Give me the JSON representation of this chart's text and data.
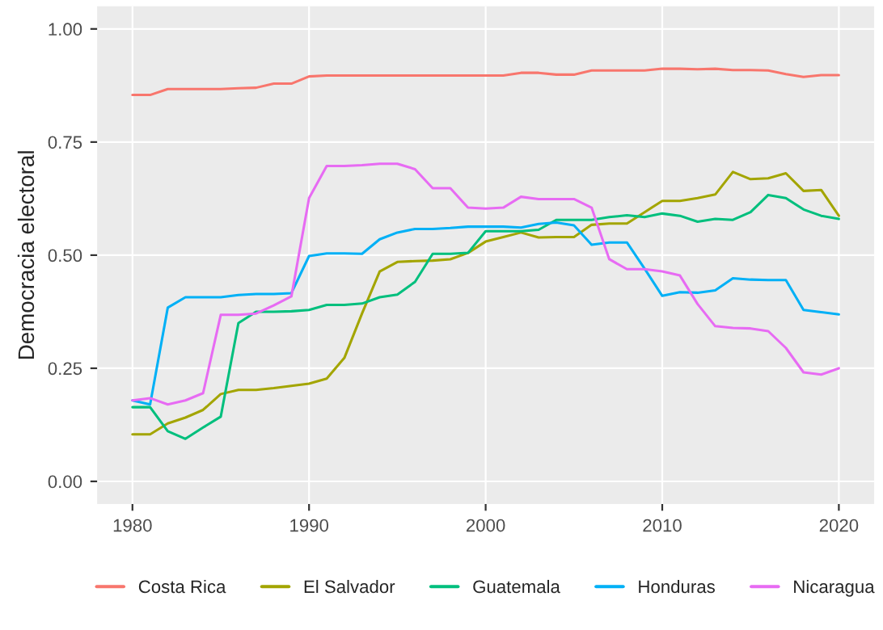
{
  "chart_data": {
    "type": "line",
    "ylabel": "Democracia electoral",
    "x": [
      1980,
      1981,
      1982,
      1983,
      1984,
      1985,
      1986,
      1987,
      1988,
      1989,
      1990,
      1991,
      1992,
      1993,
      1994,
      1995,
      1996,
      1997,
      1998,
      1999,
      2000,
      2001,
      2002,
      2003,
      2004,
      2005,
      2006,
      2007,
      2008,
      2009,
      2010,
      2011,
      2012,
      2013,
      2014,
      2015,
      2016,
      2017,
      2018,
      2019,
      2020
    ],
    "series": [
      {
        "name": "Costa Rica",
        "color": "#f8766d",
        "values": [
          0.854,
          0.854,
          0.867,
          0.867,
          0.867,
          0.867,
          0.869,
          0.87,
          0.879,
          0.879,
          0.895,
          0.897,
          0.897,
          0.897,
          0.897,
          0.897,
          0.897,
          0.897,
          0.897,
          0.897,
          0.897,
          0.897,
          0.903,
          0.903,
          0.899,
          0.899,
          0.908,
          0.908,
          0.908,
          0.908,
          0.912,
          0.912,
          0.911,
          0.912,
          0.909,
          0.909,
          0.908,
          0.9,
          0.894,
          0.898,
          0.898
        ]
      },
      {
        "name": "El Salvador",
        "color": "#a3a500",
        "values": [
          0.104,
          0.104,
          0.128,
          0.141,
          0.158,
          0.193,
          0.202,
          0.202,
          0.206,
          0.211,
          0.216,
          0.227,
          0.273,
          0.371,
          0.464,
          0.485,
          0.487,
          0.488,
          0.491,
          0.505,
          0.53,
          0.54,
          0.55,
          0.539,
          0.54,
          0.54,
          0.567,
          0.57,
          0.57,
          0.595,
          0.62,
          0.62,
          0.626,
          0.634,
          0.684,
          0.668,
          0.67,
          0.681,
          0.642,
          0.644,
          0.587
        ]
      },
      {
        "name": "Guatemala",
        "color": "#00bf7d",
        "values": [
          0.164,
          0.164,
          0.111,
          0.094,
          0.119,
          0.143,
          0.35,
          0.375,
          0.375,
          0.376,
          0.379,
          0.39,
          0.39,
          0.393,
          0.407,
          0.413,
          0.441,
          0.503,
          0.503,
          0.505,
          0.553,
          0.553,
          0.553,
          0.556,
          0.578,
          0.578,
          0.578,
          0.584,
          0.588,
          0.584,
          0.592,
          0.587,
          0.574,
          0.58,
          0.578,
          0.595,
          0.633,
          0.626,
          0.601,
          0.587,
          0.58
        ]
      },
      {
        "name": "Honduras",
        "color": "#00b0f6",
        "values": [
          0.179,
          0.17,
          0.384,
          0.407,
          0.407,
          0.407,
          0.412,
          0.414,
          0.414,
          0.416,
          0.498,
          0.504,
          0.504,
          0.503,
          0.535,
          0.55,
          0.558,
          0.558,
          0.56,
          0.563,
          0.563,
          0.563,
          0.561,
          0.569,
          0.572,
          0.566,
          0.523,
          0.528,
          0.528,
          0.47,
          0.41,
          0.418,
          0.417,
          0.422,
          0.449,
          0.446,
          0.445,
          0.445,
          0.379,
          0.374,
          0.369
        ]
      },
      {
        "name": "Nicaragua",
        "color": "#e76bf3",
        "values": [
          0.179,
          0.184,
          0.17,
          0.179,
          0.195,
          0.368,
          0.368,
          0.371,
          0.389,
          0.409,
          0.626,
          0.697,
          0.697,
          0.699,
          0.702,
          0.702,
          0.69,
          0.648,
          0.648,
          0.605,
          0.603,
          0.605,
          0.629,
          0.624,
          0.624,
          0.624,
          0.605,
          0.491,
          0.469,
          0.469,
          0.464,
          0.455,
          0.392,
          0.343,
          0.339,
          0.338,
          0.332,
          0.295,
          0.241,
          0.236,
          0.25
        ]
      }
    ],
    "xlim": [
      1978,
      2022
    ],
    "xticks": [
      1980,
      1990,
      2000,
      2010,
      2020
    ],
    "ylim": [
      -0.05,
      1.05
    ],
    "yticks": [
      {
        "value": 0,
        "label": "0.00"
      },
      {
        "value": 0.25,
        "label": "0.25"
      },
      {
        "value": 0.5,
        "label": "0.50"
      },
      {
        "value": 0.75,
        "label": "0.75"
      },
      {
        "value": 1,
        "label": "1.00"
      }
    ],
    "grid": true,
    "legend": "bottom",
    "line_style": "solid",
    "marker": "none"
  }
}
